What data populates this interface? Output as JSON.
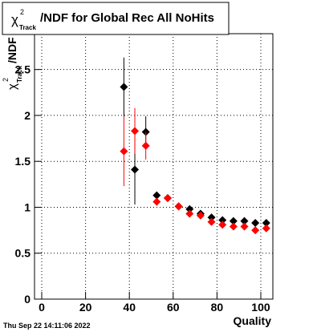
{
  "chart_data": {
    "type": "errorbar",
    "title": {
      "symbol": "χ",
      "sup": "2",
      "sub": "Track",
      "text": "/NDF for Global Rec All NoHits"
    },
    "y_label": {
      "symbol": "χ",
      "sup": "2",
      "sub": "Track",
      "text": "/NDF"
    },
    "x_label": "Quality",
    "x": [
      37.5,
      42.5,
      47.5,
      52.5,
      57.5,
      62.5,
      67.5,
      72.5,
      77.5,
      82.5,
      87.5,
      92.5,
      97.5,
      102.5
    ],
    "series": [
      {
        "color": "#000000",
        "values": [
          2.31,
          1.41,
          1.82,
          1.13,
          1.1,
          1.01,
          0.98,
          0.93,
          0.89,
          0.86,
          0.85,
          0.85,
          0.83,
          0.83
        ],
        "errors": [
          0.32,
          0.38,
          0.17,
          0.04,
          0.03,
          0.02,
          0.02,
          0.02,
          0.02,
          0.02,
          0.02,
          0.02,
          0.02,
          0.02
        ]
      },
      {
        "color": "#ff0000",
        "values": [
          1.61,
          1.83,
          1.67,
          1.06,
          1.1,
          1.01,
          0.93,
          0.91,
          0.84,
          0.81,
          0.79,
          0.79,
          0.75,
          0.77
        ],
        "errors": [
          0.38,
          0.25,
          0.15,
          0.03,
          0.03,
          0.02,
          0.02,
          0.02,
          0.02,
          0.02,
          0.02,
          0.02,
          0.02,
          0.02
        ]
      }
    ],
    "xlim": [
      -3.3,
      105.5
    ],
    "xticks": [
      0,
      20,
      40,
      60,
      80,
      100
    ],
    "ylim": [
      0,
      2.89
    ],
    "yticks": [
      0,
      0.5,
      1,
      1.5,
      2,
      2.5
    ],
    "grid": true
  },
  "timestamp": "Thu Sep 22 14:11:06 2022"
}
